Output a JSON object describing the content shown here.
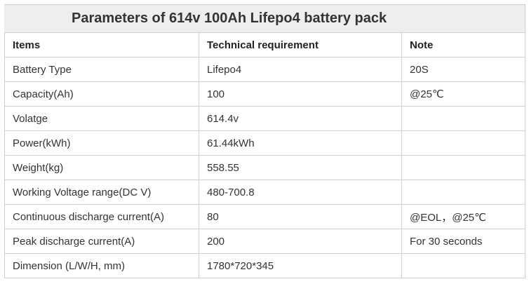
{
  "title": "Parameters of 614v 100Ah Lifepo4 battery pack",
  "headers": {
    "items": "Items",
    "technical": "Technical requirement",
    "note": "Note"
  },
  "rows": [
    {
      "item": "Battery Type",
      "value": "Lifepo4",
      "note": "20S"
    },
    {
      "item": "Capacity(Ah)",
      "value": "100",
      "note": "@25℃"
    },
    {
      "item": "Volatge",
      "value": "614.4v",
      "note": ""
    },
    {
      "item": "Power(kWh)",
      "value": "61.44kWh",
      "note": ""
    },
    {
      "item": "Weight(kg)",
      "value": "558.55",
      "note": ""
    },
    {
      "item": "Working Voltage range(DC V)",
      "value": "480-700.8",
      "note": ""
    },
    {
      "item": "Continuous discharge current(A)",
      "value": "80",
      "note": "@EOL，@25℃"
    },
    {
      "item": "Peak discharge current(A)",
      "value": "200",
      "note": "For 30 seconds"
    },
    {
      "item": "Dimension (L/W/H, mm)",
      "value": "1780*720*345",
      "note": ""
    }
  ]
}
